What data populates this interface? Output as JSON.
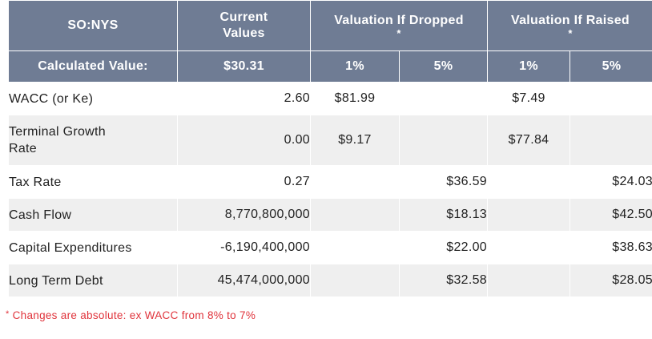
{
  "header": {
    "ticker": "SO:NYS",
    "current_values": "Current Values",
    "if_dropped": "Valuation If Dropped",
    "if_raised": "Valuation If Raised",
    "asterisk": "*"
  },
  "subheader": {
    "calculated_label": "Calculated Value:",
    "calculated_value": "$30.31",
    "dropped_1": "1%",
    "dropped_5": "5%",
    "raised_1": "1%",
    "raised_5": "5%"
  },
  "rows": [
    {
      "label": "WACC (or Ke)",
      "current": "2.60",
      "d1": "$81.99",
      "d5": "",
      "r1": "$7.49",
      "r5": ""
    },
    {
      "label": "Terminal Growth Rate",
      "current": "0.00",
      "d1": "$9.17",
      "d5": "",
      "r1": "$77.84",
      "r5": ""
    },
    {
      "label": "Tax Rate",
      "current": "0.27",
      "d1": "",
      "d5": "$36.59",
      "r1": "",
      "r5": "$24.03"
    },
    {
      "label": "Cash Flow",
      "current": "8,770,800,000",
      "d1": "",
      "d5": "$18.13",
      "r1": "",
      "r5": "$42.50"
    },
    {
      "label": "Capital Expenditures",
      "current": "-6,190,400,000",
      "d1": "",
      "d5": "$22.00",
      "r1": "",
      "r5": "$38.63"
    },
    {
      "label": "Long Term Debt",
      "current": "45,474,000,000",
      "d1": "",
      "d5": "$32.58",
      "r1": "",
      "r5": "$28.05"
    }
  ],
  "footnote": {
    "asterisk": "*",
    "text": "Changes are absolute: ex WACC from 8% to 7%"
  },
  "colors": {
    "header_bg": "#6f7c94",
    "header_text": "#ffffff",
    "row_alt_bg": "#efefef",
    "footnote_text": "#e0333b"
  }
}
